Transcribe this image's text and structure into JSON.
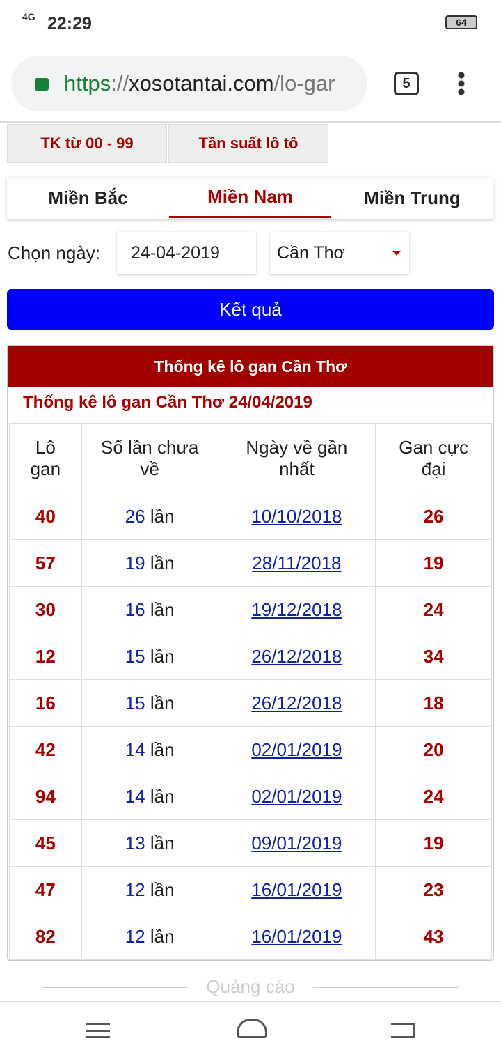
{
  "status": {
    "network": "4G",
    "time": "22:29",
    "battery": "64"
  },
  "browser": {
    "url_scheme": "https",
    "url_sep": "://",
    "url_host": "xosotantai.com",
    "url_path": "/lo-gar",
    "tabs": "5"
  },
  "top_tabs": [
    "TK từ 00 - 99",
    "Tần suất lô tô"
  ],
  "region_tabs": [
    "Miền Bắc",
    "Miền Nam",
    "Miền Trung"
  ],
  "form": {
    "label": "Chọn ngày:",
    "date": "24-04-2019",
    "province": "Cần Thơ",
    "button": "Kết quả"
  },
  "table": {
    "title": "Thống kê lô gan Cần Thơ",
    "subtitle": "Thống kê lô gan Cần Thơ 24/04/2019",
    "headers": [
      "Lô gan",
      "Số lần chưa về",
      "Ngày về gần nhất",
      "Gan cực đại"
    ],
    "rows": [
      {
        "lo": "40",
        "count": "26",
        "unit": "lần",
        "date": "10/10/2018",
        "max": "26"
      },
      {
        "lo": "57",
        "count": "19",
        "unit": "lần",
        "date": "28/11/2018",
        "max": "19"
      },
      {
        "lo": "30",
        "count": "16",
        "unit": "lần",
        "date": "19/12/2018",
        "max": "24"
      },
      {
        "lo": "12",
        "count": "15",
        "unit": "lần",
        "date": "26/12/2018",
        "max": "34"
      },
      {
        "lo": "16",
        "count": "15",
        "unit": "lần",
        "date": "26/12/2018",
        "max": "18"
      },
      {
        "lo": "42",
        "count": "14",
        "unit": "lần",
        "date": "02/01/2019",
        "max": "20"
      },
      {
        "lo": "94",
        "count": "14",
        "unit": "lần",
        "date": "02/01/2019",
        "max": "24"
      },
      {
        "lo": "45",
        "count": "13",
        "unit": "lần",
        "date": "09/01/2019",
        "max": "19"
      },
      {
        "lo": "47",
        "count": "12",
        "unit": "lần",
        "date": "16/01/2019",
        "max": "23"
      },
      {
        "lo": "82",
        "count": "12",
        "unit": "lần",
        "date": "16/01/2019",
        "max": "43"
      }
    ]
  },
  "ad": "Quảng cáo"
}
